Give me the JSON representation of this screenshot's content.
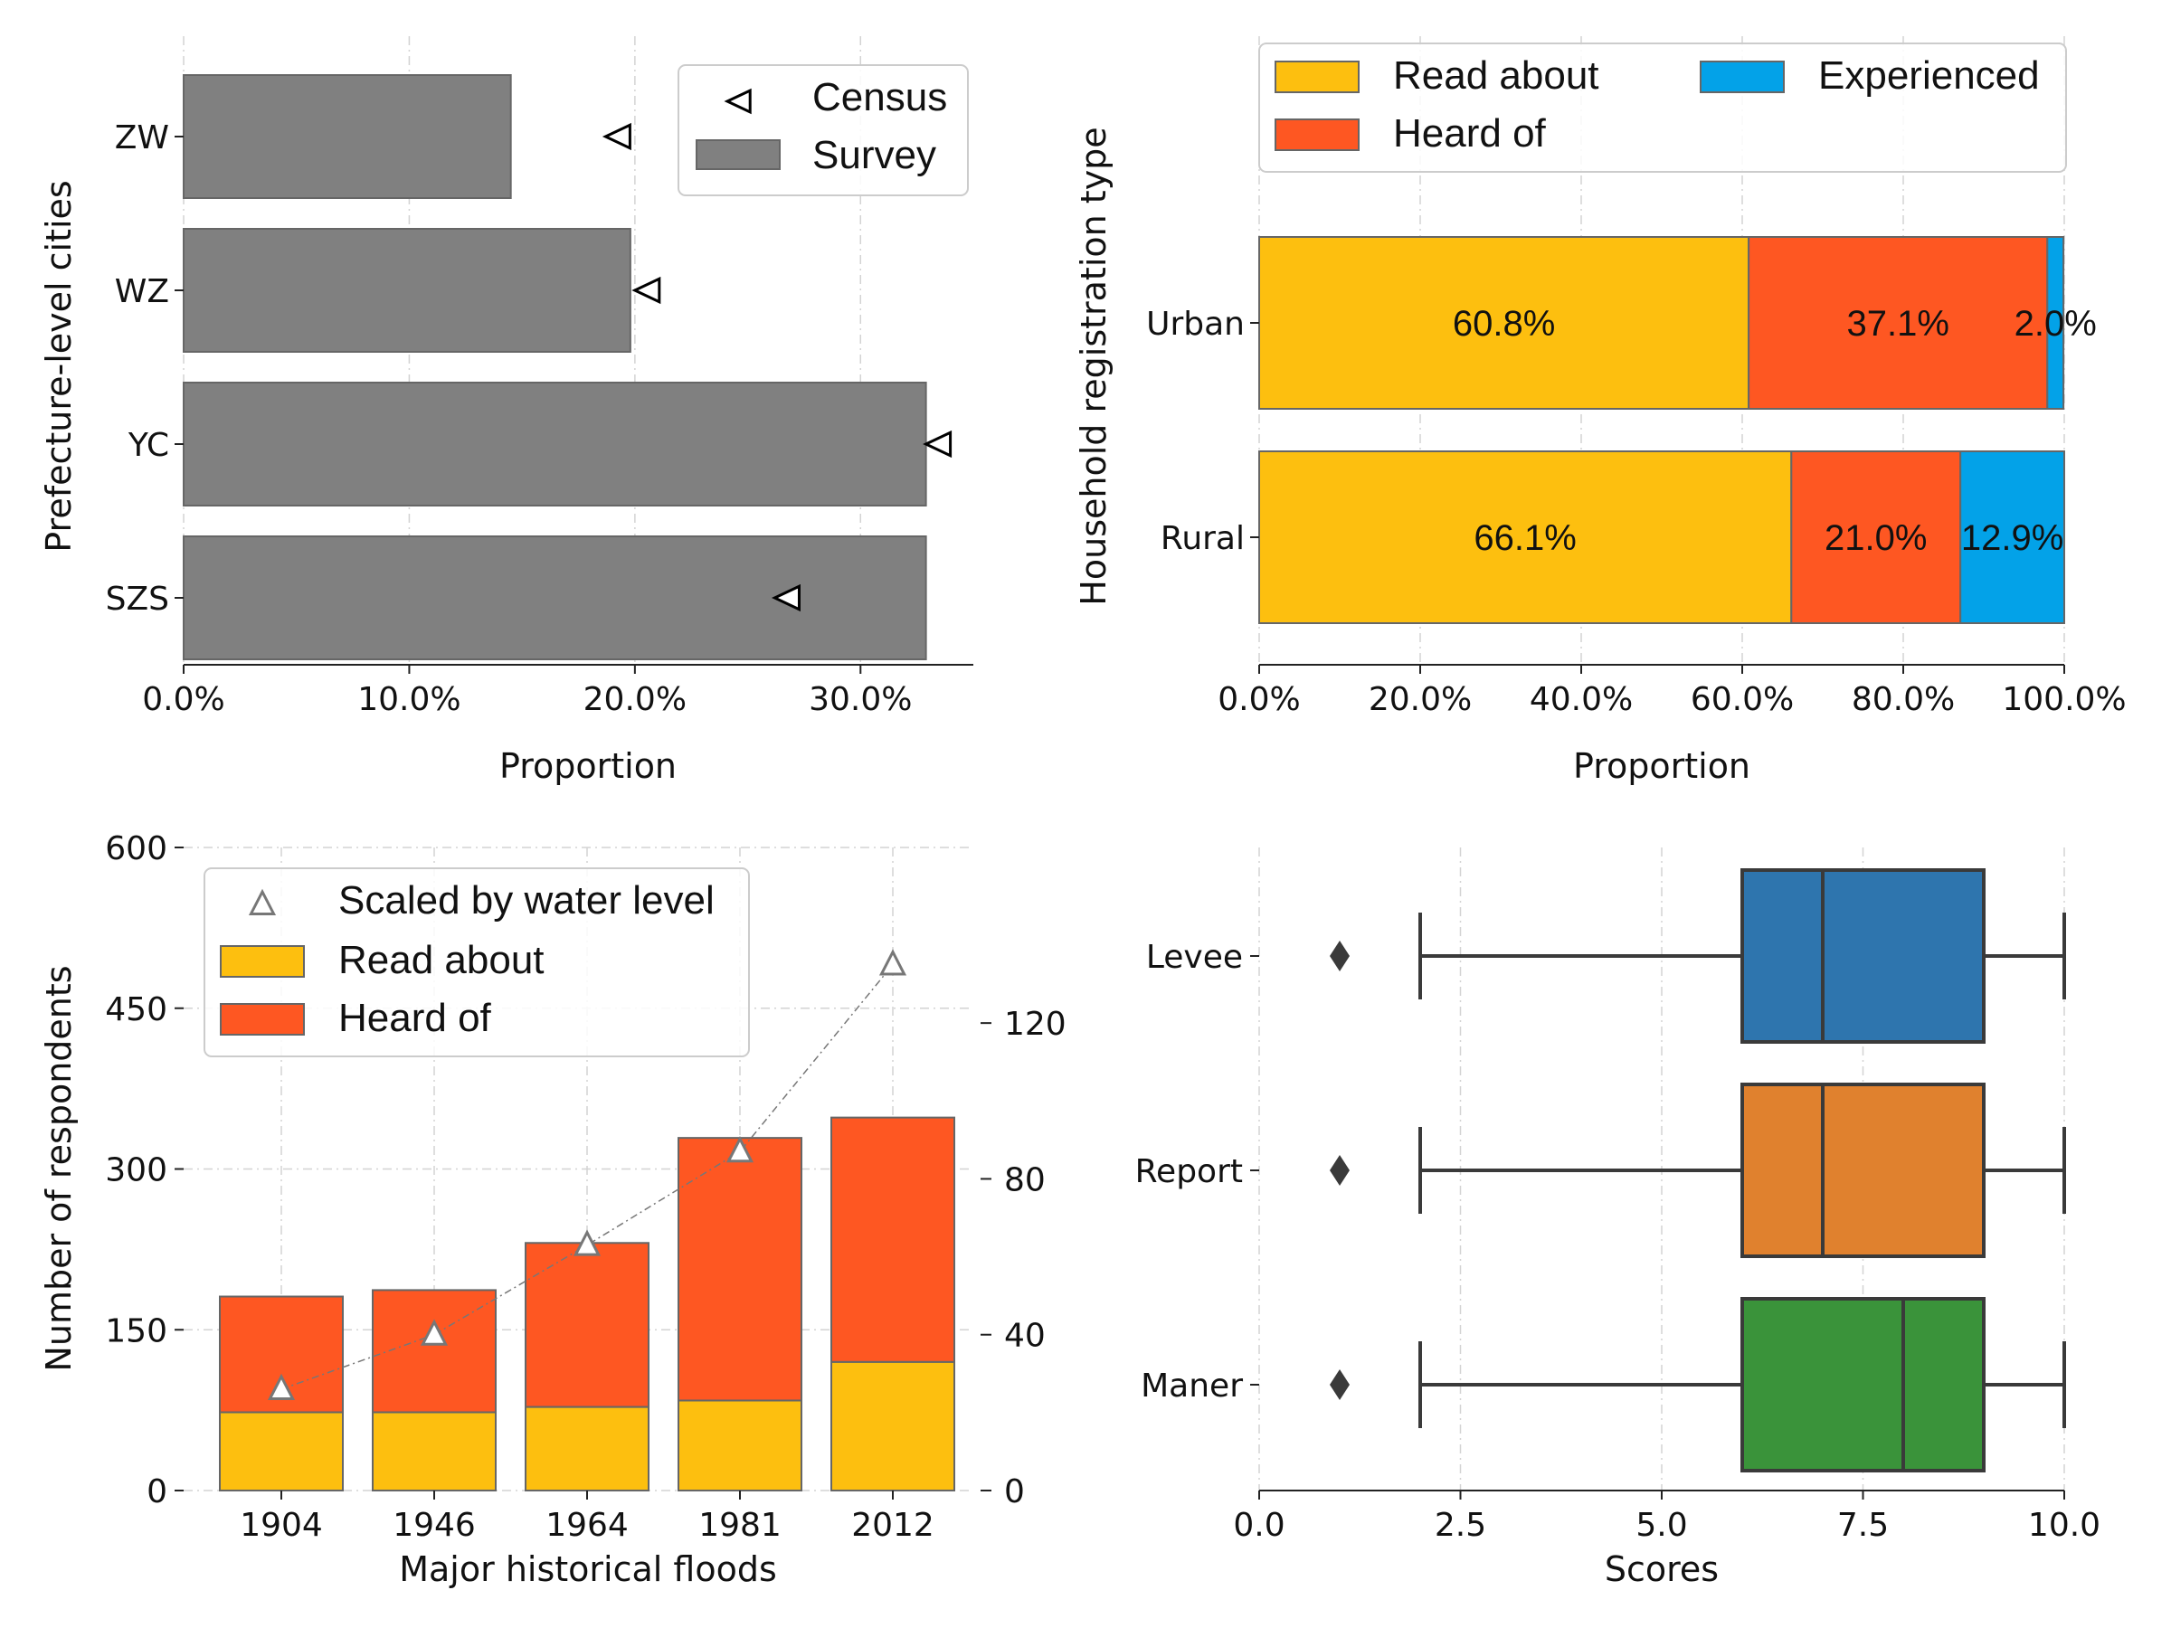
{
  "colors": {
    "survey": "#808080",
    "read_about": "#FDBF0F",
    "heard_of": "#FE5722",
    "experienced": "#03A2E8",
    "edge": "#666666",
    "levee": "#2E75AE",
    "report": "#E0812E",
    "maner": "#3A933A"
  },
  "chart_data": [
    {
      "type": "bar",
      "orientation": "horizontal",
      "xlabel": "Proportion",
      "ylabel": "Prefecture-level cities",
      "xlim": [
        0,
        0.35
      ],
      "xticks": [
        "0.0%",
        "10.0%",
        "20.0%",
        "30.0%"
      ],
      "grid": "x",
      "legend_position": "top-right",
      "categories": [
        "ZW",
        "WZ",
        "YC",
        "SZS"
      ],
      "series": [
        {
          "name": "Survey",
          "marker": "bar",
          "values": [
            0.145,
            0.198,
            0.329,
            0.329
          ]
        },
        {
          "name": "Census",
          "marker": "left-triangle",
          "values": [
            0.193,
            0.206,
            0.335,
            0.268
          ]
        }
      ]
    },
    {
      "type": "bar",
      "orientation": "horizontal",
      "stacked": true,
      "xlabel": "Proportion",
      "ylabel": "Household registration type",
      "xlim": [
        0,
        1
      ],
      "xticks": [
        "0.0%",
        "20.0%",
        "40.0%",
        "60.0%",
        "80.0%",
        "100.0%"
      ],
      "grid": "x",
      "legend_position": "top",
      "categories": [
        "Urban",
        "Rural"
      ],
      "series": [
        {
          "name": "Read about",
          "values": [
            0.608,
            0.661
          ],
          "labels": [
            "60.8%",
            "66.1%"
          ]
        },
        {
          "name": "Heard of",
          "values": [
            0.371,
            0.21
          ],
          "labels": [
            "37.1%",
            "21.0%"
          ]
        },
        {
          "name": "Experienced",
          "values": [
            0.02,
            0.129
          ],
          "labels": [
            "2.0%",
            "12.9%"
          ]
        }
      ]
    },
    {
      "type": "bar",
      "stacked": true,
      "xlabel": "Major historical floods",
      "ylabel": "Number of respondents",
      "ylim": [
        0,
        600
      ],
      "yticks": [
        "0",
        "150",
        "300",
        "450",
        "600"
      ],
      "y2lim": [
        0,
        140
      ],
      "y2ticks": [
        "0",
        "40",
        "80",
        "120"
      ],
      "grid": "both",
      "legend_position": "top-left",
      "categories": [
        "1904",
        "1946",
        "1964",
        "1981",
        "2012"
      ],
      "series": [
        {
          "name": "Read about",
          "values": [
            73,
            73,
            78,
            84,
            120
          ]
        },
        {
          "name": "Heard of",
          "values": [
            108,
            114,
            153,
            245,
            228
          ]
        },
        {
          "name": "Scaled by water level",
          "axis": "right",
          "marker": "triangle",
          "values": [
            26,
            40,
            63,
            87,
            135
          ]
        }
      ]
    },
    {
      "type": "box",
      "xlabel": "Scores",
      "xlim": [
        0,
        10
      ],
      "xticks": [
        "0.0",
        "2.5",
        "5.0",
        "7.5",
        "10.0"
      ],
      "grid": "x",
      "categories": [
        "Levee",
        "Report",
        "Maner"
      ],
      "boxes": [
        {
          "name": "Levee",
          "whisker_low": 2,
          "q1": 6,
          "median": 7,
          "q3": 9,
          "whisker_high": 10,
          "outliers": [
            1
          ]
        },
        {
          "name": "Report",
          "whisker_low": 2,
          "q1": 6,
          "median": 7,
          "q3": 9,
          "whisker_high": 10,
          "outliers": [
            1
          ]
        },
        {
          "name": "Maner",
          "whisker_low": 2,
          "q1": 6,
          "median": 8,
          "q3": 9,
          "whisker_high": 10,
          "outliers": [
            1
          ]
        }
      ]
    }
  ]
}
